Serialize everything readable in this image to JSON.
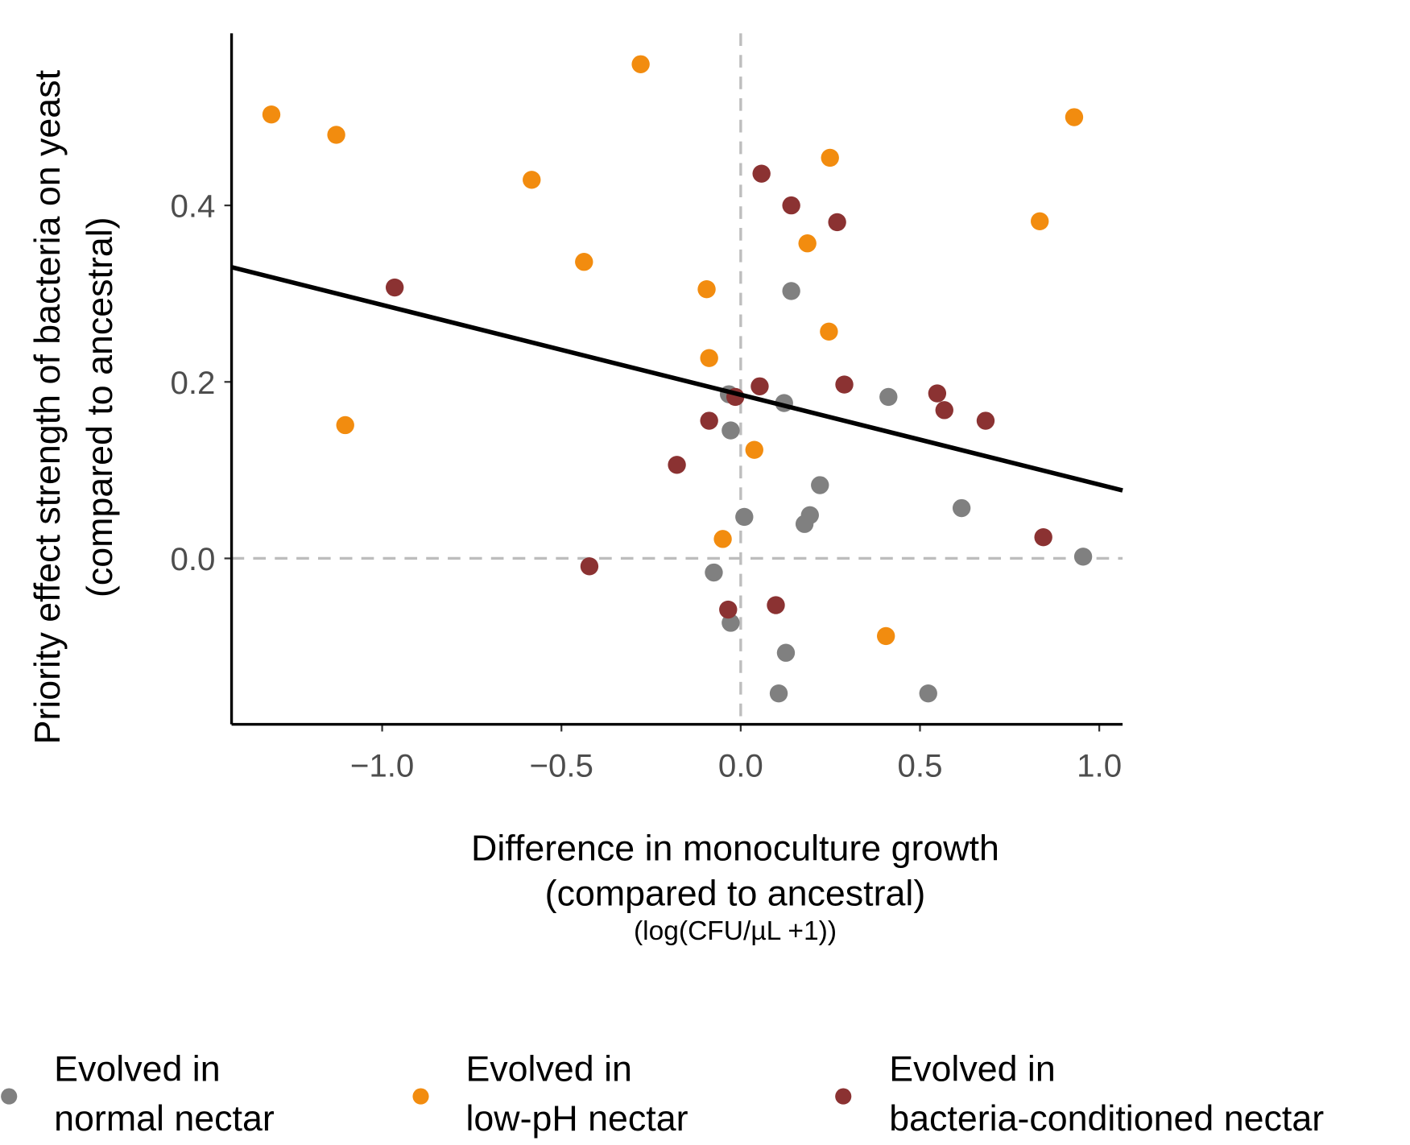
{
  "chart_data": {
    "type": "scatter",
    "xlabel": [
      "Difference in monoculture growth",
      "(compared to ancestral)",
      "(log(CFU/µL +1))"
    ],
    "ylabel": [
      "Priority effect strength of bacteria on yeast",
      "(compared to ancestral)"
    ],
    "xlim": [
      -1.42,
      1.065
    ],
    "ylim": [
      -0.188,
      0.595
    ],
    "xticks": [
      {
        "value": -1,
        "label": "−1.0"
      },
      {
        "value": -0.5,
        "label": "−0.5"
      },
      {
        "value": 0,
        "label": "0.0"
      },
      0.5,
      {
        "value": 1,
        "label": "1.0"
      }
    ],
    "yticks": [
      {
        "value": 0,
        "label": "0.0"
      },
      0.2,
      0.4
    ],
    "grid": false,
    "vline": 0,
    "hline": 0,
    "fit_line": {
      "color": "#000000",
      "x": [
        -1.42,
        1.065
      ],
      "y": [
        0.33,
        0.077
      ]
    },
    "legend": "bottom",
    "series": [
      {
        "name": "Evolved in normal nectar",
        "color": "#808080",
        "x": [
          0.141,
          -0.033,
          0.121,
          0.412,
          -0.028,
          0.221,
          0.01,
          0.193,
          0.178,
          0.616,
          0.955,
          -0.075,
          -0.028,
          0.126,
          0.106,
          0.523
        ],
        "values": [
          0.303,
          0.186,
          0.176,
          0.183,
          0.145,
          0.083,
          0.047,
          0.049,
          0.039,
          0.057,
          0.002,
          -0.016,
          -0.073,
          -0.107,
          -0.153,
          -0.153
        ]
      },
      {
        "name": "Evolved in low-pH nectar",
        "color": "#f28c0f",
        "x": [
          -1.309,
          -1.128,
          -0.279,
          -0.583,
          -0.437,
          -1.103,
          -0.095,
          -0.088,
          0.249,
          0.186,
          0.246,
          0.038,
          -0.05,
          0.405,
          0.834,
          0.93
        ],
        "values": [
          0.503,
          0.48,
          0.56,
          0.429,
          0.336,
          0.151,
          0.305,
          0.227,
          0.454,
          0.357,
          0.257,
          0.123,
          0.022,
          -0.088,
          0.382,
          0.5
        ]
      },
      {
        "name": "Evolved in bacteria-conditioned nectar",
        "color": "#8b3232",
        "x": [
          -0.965,
          0.058,
          0.141,
          0.269,
          0.053,
          -0.015,
          -0.088,
          -0.178,
          0.289,
          0.548,
          0.568,
          0.683,
          -0.422,
          -0.035,
          0.098,
          0.844
        ],
        "values": [
          0.307,
          0.436,
          0.4,
          0.381,
          0.195,
          0.183,
          0.156,
          0.106,
          0.197,
          0.187,
          0.168,
          0.156,
          -0.009,
          -0.058,
          -0.053,
          0.024
        ]
      }
    ]
  }
}
